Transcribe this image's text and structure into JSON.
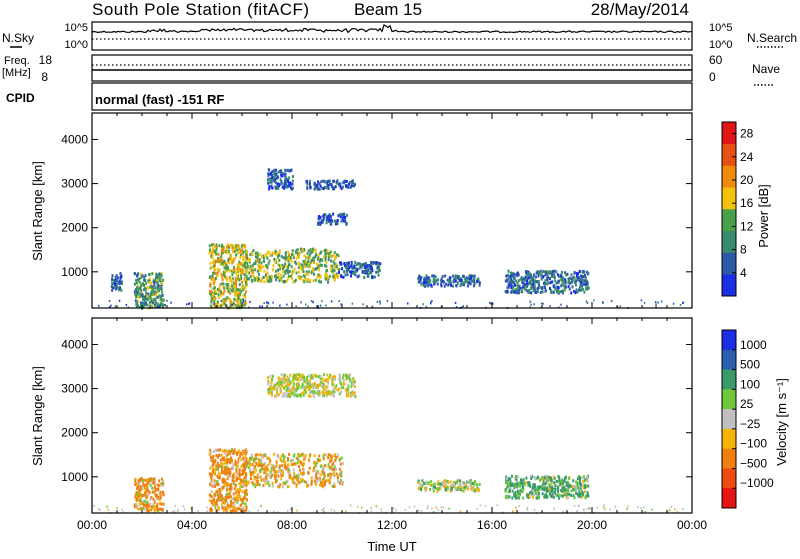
{
  "header": {
    "station": "South Pole Station (fitACF)",
    "beam": "Beam 15",
    "date": "28/May/2014"
  },
  "noise_panel": {
    "left_label": "N.Sky",
    "left_ticks": [
      "10^5",
      "10^0"
    ],
    "right_ticks": [
      "10^5",
      "10^0"
    ],
    "right_label": "N.Search"
  },
  "freq_panel": {
    "left_label_1": "Freq.",
    "left_label_2": "[MHz]",
    "left_ticks": [
      "18",
      "8"
    ],
    "right_ticks": [
      "60",
      "0"
    ],
    "right_label": "Nave"
  },
  "cpid_panel": {
    "label": "CPID",
    "text": "normal (fast) -151 RF"
  },
  "colors": {
    "power": [
      "#1a2ee6",
      "#2d5aa8",
      "#3a8a72",
      "#4aa04a",
      "#f2c20c",
      "#f08a0a",
      "#e85014",
      "#e01616"
    ],
    "velocity": [
      "#e81414",
      "#ee4a12",
      "#f08010",
      "#f4b40a",
      "#c0c0c0",
      "#6ec83c",
      "#3a9a6a",
      "#2a5fb0",
      "#1a2ee6"
    ]
  },
  "chart_data": [
    {
      "type": "heatmap",
      "title": "",
      "xlabel": "",
      "ylabel": "Slant Range [km]",
      "xlim": [
        "00:00",
        "24:00"
      ],
      "ylim": [
        180,
        4600
      ],
      "y_ticks": [
        "1000",
        "2000",
        "3000",
        "4000"
      ],
      "colorbar": {
        "label": "Power [dB]",
        "ticks": [
          "28",
          "24",
          "20",
          "16",
          "12",
          "8",
          "4"
        ],
        "range": [
          0,
          30
        ]
      },
      "features": [
        {
          "start": "00:45",
          "end": "01:10",
          "range_min": 600,
          "range_max": 1000,
          "power": 6
        },
        {
          "start": "01:40",
          "end": "02:50",
          "range_min": 200,
          "range_max": 1000,
          "power": 11
        },
        {
          "start": "04:40",
          "end": "06:10",
          "range_min": 200,
          "range_max": 1650,
          "power": 16
        },
        {
          "start": "06:00",
          "end": "09:50",
          "range_min": 800,
          "range_max": 1550,
          "power": 14
        },
        {
          "start": "09:50",
          "end": "11:30",
          "range_min": 900,
          "range_max": 1250,
          "power": 6
        },
        {
          "start": "07:00",
          "end": "08:00",
          "range_min": 2900,
          "range_max": 3350,
          "power": 6
        },
        {
          "start": "08:30",
          "end": "10:30",
          "range_min": 2900,
          "range_max": 3100,
          "power": 5
        },
        {
          "start": "09:00",
          "end": "10:10",
          "range_min": 2100,
          "range_max": 2350,
          "power": 4
        },
        {
          "start": "13:00",
          "end": "15:30",
          "range_min": 700,
          "range_max": 950,
          "power": 6
        },
        {
          "start": "16:30",
          "end": "19:50",
          "range_min": 550,
          "range_max": 1050,
          "power": 7
        }
      ]
    },
    {
      "type": "heatmap",
      "title": "",
      "xlabel": "Time UT",
      "ylabel": "Slant Range [km]",
      "xlim": [
        "00:00",
        "24:00"
      ],
      "ylim": [
        180,
        4600
      ],
      "x_ticks": [
        "00:00",
        "04:00",
        "08:00",
        "12:00",
        "16:00",
        "20:00",
        "00:00"
      ],
      "y_ticks": [
        "1000",
        "2000",
        "3000",
        "4000"
      ],
      "colorbar": {
        "label": "Velocity [m s⁻¹]",
        "ticks": [
          "1000",
          "500",
          "100",
          "25",
          "−25",
          "−100",
          "−500",
          "−1000"
        ],
        "levels": [
          -1000,
          -500,
          -100,
          -25,
          25,
          100,
          500,
          1000
        ]
      },
      "features": [
        {
          "start": "01:40",
          "end": "02:50",
          "range_min": 250,
          "range_max": 1000,
          "velocity": -150
        },
        {
          "start": "04:40",
          "end": "06:10",
          "range_min": 250,
          "range_max": 1650,
          "velocity": -200
        },
        {
          "start": "06:00",
          "end": "10:00",
          "range_min": 800,
          "range_max": 1550,
          "velocity": -90
        },
        {
          "start": "07:00",
          "end": "10:30",
          "range_min": 2850,
          "range_max": 3350,
          "velocity": 0
        },
        {
          "start": "13:00",
          "end": "15:30",
          "range_min": 700,
          "range_max": 950,
          "velocity": 60
        },
        {
          "start": "16:30",
          "end": "19:50",
          "range_min": 550,
          "range_max": 1050,
          "velocity": 200
        }
      ]
    }
  ]
}
